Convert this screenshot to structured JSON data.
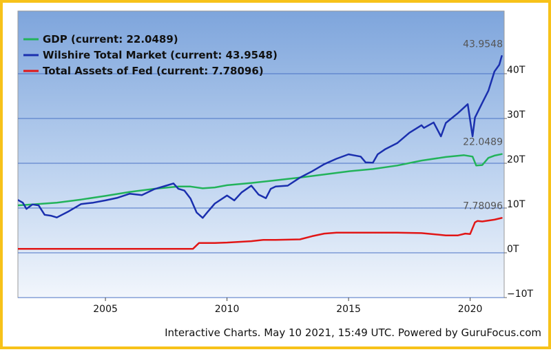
{
  "chart_data": {
    "type": "line",
    "xlabel": "",
    "ylabel": "",
    "xlim": [
      2001.4,
      2021.4
    ],
    "ylim": [
      -10,
      54
    ],
    "x_ticks": [
      {
        "value": 2005,
        "label": "2005"
      },
      {
        "value": 2010,
        "label": "2010"
      },
      {
        "value": 2015,
        "label": "2015"
      },
      {
        "value": 2020,
        "label": "2020"
      }
    ],
    "y_ticks": [
      {
        "value": -10,
        "label": "−10T"
      },
      {
        "value": 0,
        "label": "0T"
      },
      {
        "value": 10,
        "label": "10T"
      },
      {
        "value": 20,
        "label": "20T"
      },
      {
        "value": 30,
        "label": "30T"
      },
      {
        "value": 40,
        "label": "40T"
      }
    ],
    "legend_position": "top-left",
    "series": [
      {
        "name": "GDP",
        "legend_label": "GDP (current: 22.0489)",
        "current_label": "22.0489",
        "color": "#22b35a",
        "x": [
          2001.4,
          2002,
          2003,
          2004,
          2005,
          2006,
          2007,
          2008,
          2008.5,
          2009,
          2009.5,
          2010,
          2011,
          2012,
          2013,
          2014,
          2015,
          2016,
          2017,
          2018,
          2019,
          2019.75,
          2020.1,
          2020.25,
          2020.5,
          2020.75,
          2021,
          2021.3
        ],
        "y": [
          10.6,
          10.8,
          11.2,
          11.9,
          12.7,
          13.6,
          14.3,
          14.8,
          14.8,
          14.4,
          14.6,
          15.1,
          15.6,
          16.2,
          16.8,
          17.5,
          18.2,
          18.7,
          19.5,
          20.6,
          21.4,
          21.8,
          21.5,
          19.5,
          19.6,
          21.2,
          21.7,
          22.0489
        ]
      },
      {
        "name": "Wilshire Total Market",
        "legend_label": "Wilshire Total Market (current: 43.9548)",
        "current_label": "43.9548",
        "color": "#1a2fae",
        "x": [
          2001.4,
          2001.6,
          2001.75,
          2002,
          2002.25,
          2002.5,
          2002.75,
          2003,
          2003.5,
          2004,
          2004.5,
          2005,
          2005.5,
          2006,
          2006.5,
          2007,
          2007.5,
          2007.8,
          2008,
          2008.25,
          2008.5,
          2008.75,
          2009,
          2009.2,
          2009.5,
          2010,
          2010.3,
          2010.6,
          2011,
          2011.3,
          2011.6,
          2011.8,
          2012,
          2012.5,
          2013,
          2013.5,
          2014,
          2014.5,
          2015,
          2015.5,
          2015.7,
          2016,
          2016.2,
          2016.5,
          2017,
          2017.5,
          2018,
          2018.1,
          2018.5,
          2018.8,
          2019,
          2019.5,
          2019.9,
          2020.1,
          2020.2,
          2020.5,
          2020.75,
          2021,
          2021.2,
          2021.3
        ],
        "y": [
          11.8,
          11.2,
          9.8,
          10.8,
          10.6,
          8.5,
          8.3,
          7.9,
          9.3,
          10.9,
          11.2,
          11.7,
          12.3,
          13.2,
          12.9,
          14.2,
          15.0,
          15.5,
          14.3,
          13.9,
          12.1,
          9.0,
          7.8,
          9.1,
          11.0,
          12.8,
          11.7,
          13.5,
          15.0,
          13.0,
          12.2,
          14.3,
          14.8,
          15.0,
          16.8,
          18.2,
          19.8,
          21.0,
          22.0,
          21.5,
          20.2,
          20.1,
          22.0,
          23.1,
          24.5,
          26.8,
          28.5,
          27.9,
          29.1,
          26.0,
          29.0,
          31.2,
          33.2,
          26.0,
          30.2,
          33.5,
          36.2,
          40.5,
          42.0,
          43.9548
        ]
      },
      {
        "name": "Total Assets of Fed",
        "legend_label": "Total Assets of Fed (current: 7.78096)",
        "current_label": "7.78096",
        "color": "#e11616",
        "x": [
          2001.4,
          2003,
          2005,
          2007,
          2008.6,
          2008.85,
          2009,
          2009.5,
          2010,
          2011,
          2011.5,
          2012,
          2013,
          2013.5,
          2014,
          2014.5,
          2015,
          2016,
          2017,
          2018,
          2019,
          2019.5,
          2019.8,
          2020,
          2020.2,
          2020.3,
          2020.5,
          2021,
          2021.3
        ],
        "y": [
          0.9,
          0.9,
          0.9,
          0.9,
          0.9,
          2.2,
          2.2,
          2.2,
          2.3,
          2.6,
          2.9,
          2.9,
          3.0,
          3.7,
          4.3,
          4.5,
          4.5,
          4.5,
          4.5,
          4.4,
          3.9,
          3.9,
          4.3,
          4.2,
          6.8,
          7.1,
          7.0,
          7.4,
          7.78096
        ]
      }
    ]
  },
  "footer": {
    "text": "Interactive Charts. May 10 2021, 15:49 UTC. Powered by GuruFocus.com"
  }
}
